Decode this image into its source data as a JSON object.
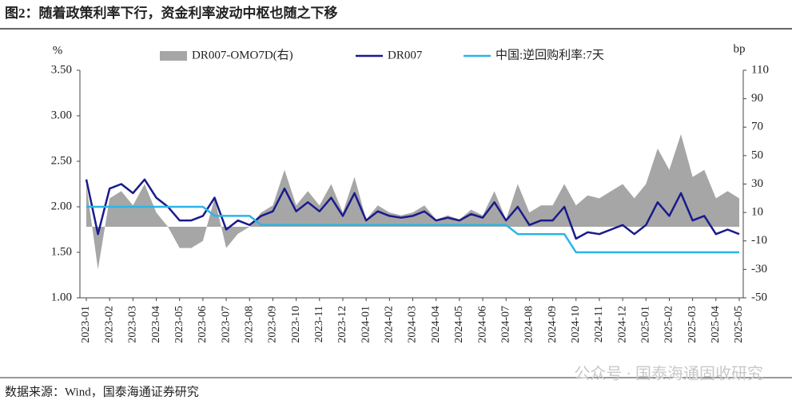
{
  "chart_data": {
    "type": "line",
    "title": "图2：随着政策利率下行，资金利率波动中枢也随之下移",
    "y_label": "%",
    "y2_label": "bp",
    "source": "数据来源：Wind，国泰海通证券研究",
    "watermark": "公众号 · 国泰海通固收研究",
    "categories": [
      "2023-01",
      null,
      "2023-02",
      null,
      "2023-03",
      null,
      "2023-04",
      null,
      "2023-05",
      null,
      "2023-06",
      null,
      "2023-07",
      null,
      "2023-08",
      null,
      "2023-09",
      null,
      "2023-10",
      null,
      "2023-11",
      null,
      "2023-12",
      null,
      "2024-01",
      null,
      "2024-02",
      null,
      "2024-03",
      null,
      "2024-04",
      null,
      "2024-05",
      null,
      "2024-06",
      null,
      "2024-07",
      null,
      "2024-08",
      null,
      "2024-09",
      null,
      "2024-10",
      null,
      "2024-11",
      null,
      "2024-12",
      null,
      "2025-01",
      null,
      "2025-02",
      null,
      "2025-03",
      null,
      "2025-04",
      null,
      "2025-05"
    ],
    "series": [
      {
        "name": "DR007-OMO7D(右)",
        "color": "#a6a6a6",
        "axis": "y2",
        "kind": "area",
        "values": [
          30,
          -30,
          20,
          25,
          15,
          30,
          10,
          0,
          -15,
          -15,
          -10,
          20,
          -15,
          -5,
          0,
          10,
          15,
          40,
          15,
          25,
          15,
          30,
          10,
          35,
          5,
          15,
          10,
          8,
          10,
          15,
          5,
          8,
          5,
          12,
          8,
          25,
          5,
          30,
          10,
          15,
          15,
          30,
          15,
          22,
          20,
          25,
          30,
          20,
          30,
          55,
          40,
          65,
          35,
          40,
          20,
          25,
          20
        ]
      },
      {
        "name": "DR007",
        "color": "#1a1a8c",
        "values": [
          2.3,
          1.7,
          2.2,
          2.25,
          2.15,
          2.3,
          2.1,
          2.0,
          1.85,
          1.85,
          1.9,
          2.1,
          1.75,
          1.85,
          1.8,
          1.9,
          1.95,
          2.2,
          1.95,
          2.05,
          1.95,
          2.1,
          1.9,
          2.15,
          1.85,
          1.95,
          1.9,
          1.88,
          1.9,
          1.95,
          1.85,
          1.88,
          1.85,
          1.92,
          1.88,
          2.05,
          1.85,
          2.0,
          1.8,
          1.85,
          1.85,
          2.0,
          1.65,
          1.72,
          1.7,
          1.75,
          1.8,
          1.7,
          1.8,
          2.05,
          1.9,
          2.15,
          1.85,
          1.9,
          1.7,
          1.75,
          1.7
        ]
      },
      {
        "name": "中国:逆回购利率:7天",
        "color": "#29b6e6",
        "values": [
          2.0,
          2.0,
          2.0,
          2.0,
          2.0,
          2.0,
          2.0,
          2.0,
          2.0,
          2.0,
          2.0,
          1.9,
          1.9,
          1.9,
          1.9,
          1.8,
          1.8,
          1.8,
          1.8,
          1.8,
          1.8,
          1.8,
          1.8,
          1.8,
          1.8,
          1.8,
          1.8,
          1.8,
          1.8,
          1.8,
          1.8,
          1.8,
          1.8,
          1.8,
          1.8,
          1.8,
          1.8,
          1.7,
          1.7,
          1.7,
          1.7,
          1.7,
          1.5,
          1.5,
          1.5,
          1.5,
          1.5,
          1.5,
          1.5,
          1.5,
          1.5,
          1.5,
          1.5,
          1.5,
          1.5,
          1.5,
          1.5
        ]
      }
    ],
    "ylim": [
      1,
      3.5
    ],
    "yticks": [
      {
        "value": 1,
        "label": "1.00"
      },
      {
        "value": 1.5,
        "label": "1.50"
      },
      {
        "value": 2,
        "label": "2.00"
      },
      {
        "value": 2.5,
        "label": "2.50"
      },
      {
        "value": 3,
        "label": "3.00"
      },
      {
        "value": 3.5,
        "label": "3.50"
      }
    ],
    "y2lim": [
      -50,
      110
    ],
    "y2ticks": [
      -50,
      -30,
      -10,
      10,
      30,
      50,
      70,
      90,
      110
    ]
  }
}
